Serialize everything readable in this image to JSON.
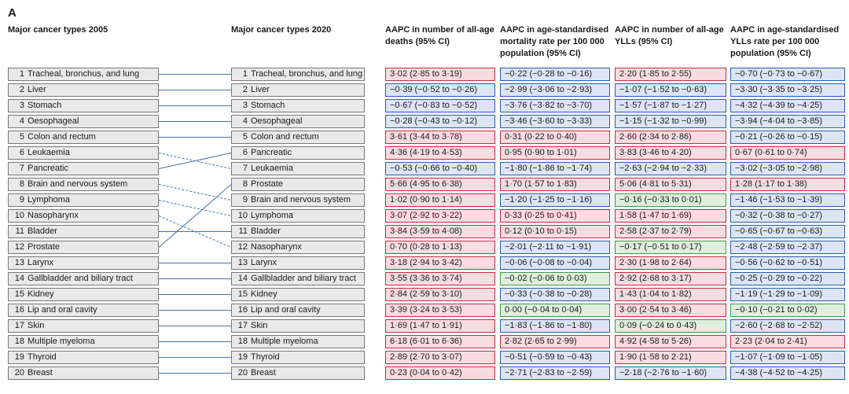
{
  "panel_label": "A",
  "headers": {
    "rank2005": "Major cancer types 2005",
    "rank2020": "Major cancer types 2020",
    "deaths": "AAPC in number of all-age deaths (95% CI)",
    "asmr": "AAPC in age-standardised mortality rate per 100 000 population (95% CI)",
    "ylls": "AAPC in number of all-age YLLs (95% CI)",
    "asylls": "AAPC in age-standardised YLLs rate per 100 000 population (95% CI)"
  },
  "colors": {
    "increase": "#c42a47",
    "decrease": "#2d5aa8",
    "not_significant": "#3f9a4a"
  },
  "rank2005": [
    {
      "rank": "1",
      "name": "Tracheal, bronchus, and lung"
    },
    {
      "rank": "2",
      "name": "Liver"
    },
    {
      "rank": "3",
      "name": "Stomach"
    },
    {
      "rank": "4",
      "name": "Oesophageal"
    },
    {
      "rank": "5",
      "name": "Colon and rectum"
    },
    {
      "rank": "6",
      "name": "Leukaemia"
    },
    {
      "rank": "7",
      "name": "Pancreatic"
    },
    {
      "rank": "8",
      "name": "Brain and nervous system"
    },
    {
      "rank": "9",
      "name": "Lymphoma"
    },
    {
      "rank": "10",
      "name": "Nasopharynx"
    },
    {
      "rank": "11",
      "name": "Bladder"
    },
    {
      "rank": "12",
      "name": "Prostate"
    },
    {
      "rank": "13",
      "name": "Larynx"
    },
    {
      "rank": "14",
      "name": "Gallbladder and biliary tract"
    },
    {
      "rank": "15",
      "name": "Kidney"
    },
    {
      "rank": "16",
      "name": "Lip and oral cavity"
    },
    {
      "rank": "17",
      "name": "Skin"
    },
    {
      "rank": "18",
      "name": "Multiple myeloma"
    },
    {
      "rank": "19",
      "name": "Thyroid"
    },
    {
      "rank": "20",
      "name": "Breast"
    }
  ],
  "rank2020": [
    {
      "rank": "1",
      "name": "Tracheal, bronchus, and lung",
      "from": 1
    },
    {
      "rank": "2",
      "name": "Liver",
      "from": 2
    },
    {
      "rank": "3",
      "name": "Stomach",
      "from": 3
    },
    {
      "rank": "4",
      "name": "Oesophageal",
      "from": 4
    },
    {
      "rank": "5",
      "name": "Colon and rectum",
      "from": 5
    },
    {
      "rank": "6",
      "name": "Pancreatic",
      "from": 7
    },
    {
      "rank": "7",
      "name": "Leukaemia",
      "from": 6
    },
    {
      "rank": "8",
      "name": "Prostate",
      "from": 12
    },
    {
      "rank": "9",
      "name": "Brain and nervous system",
      "from": 8
    },
    {
      "rank": "10",
      "name": "Lymphoma",
      "from": 9
    },
    {
      "rank": "11",
      "name": "Bladder",
      "from": 11
    },
    {
      "rank": "12",
      "name": "Nasopharynx",
      "from": 10
    },
    {
      "rank": "13",
      "name": "Larynx",
      "from": 13
    },
    {
      "rank": "14",
      "name": "Gallbladder and biliary tract",
      "from": 14
    },
    {
      "rank": "15",
      "name": "Kidney",
      "from": 15
    },
    {
      "rank": "16",
      "name": "Lip and oral cavity",
      "from": 16
    },
    {
      "rank": "17",
      "name": "Skin",
      "from": 17
    },
    {
      "rank": "18",
      "name": "Multiple myeloma",
      "from": 18
    },
    {
      "rank": "19",
      "name": "Thyroid",
      "from": 19
    },
    {
      "rank": "20",
      "name": "Breast",
      "from": 20
    }
  ],
  "aapc": {
    "deaths": [
      {
        "text": "3·02 (2·85 to 3·19)",
        "sig": "increase"
      },
      {
        "text": "−0·39 (−0·52 to −0·26)",
        "sig": "decrease"
      },
      {
        "text": "−0·67 (−0·83 to −0·52)",
        "sig": "decrease"
      },
      {
        "text": "−0·28 (−0·43 to −0·12)",
        "sig": "decrease"
      },
      {
        "text": "3·61 (3·44 to 3·78)",
        "sig": "increase"
      },
      {
        "text": "4·36 (4·19 to 4·53)",
        "sig": "increase"
      },
      {
        "text": "−0·53 (−0·66 to −0·40)",
        "sig": "decrease"
      },
      {
        "text": "5·66 (4·95 to 6·38)",
        "sig": "increase"
      },
      {
        "text": "1·02 (0·90 to 1·14)",
        "sig": "increase"
      },
      {
        "text": "3·07 (2·92 to 3·22)",
        "sig": "increase"
      },
      {
        "text": "3·84 (3·59 to 4·08)",
        "sig": "increase"
      },
      {
        "text": "0·70 (0·28 to 1·13)",
        "sig": "increase"
      },
      {
        "text": "3·18 (2·94 to 3·42)",
        "sig": "increase"
      },
      {
        "text": "3·55 (3·36 to 3·74)",
        "sig": "increase"
      },
      {
        "text": "2·84 (2·59 to 3·10)",
        "sig": "increase"
      },
      {
        "text": "3·39 (3·24 to 3·53)",
        "sig": "increase"
      },
      {
        "text": "1·69 (1·47 to 1·91)",
        "sig": "increase"
      },
      {
        "text": "6·18 (6·01 to 6·36)",
        "sig": "increase"
      },
      {
        "text": "2·89 (2·70 to 3·07)",
        "sig": "increase"
      },
      {
        "text": "0·23 (0·04 to 0·42)",
        "sig": "increase"
      }
    ],
    "asmr": [
      {
        "text": "−0·22 (−0·28 to −0·16)",
        "sig": "decrease"
      },
      {
        "text": "−2·99 (−3·06 to −2·93)",
        "sig": "decrease"
      },
      {
        "text": "−3·76 (−3·82 to −3·70)",
        "sig": "decrease"
      },
      {
        "text": "−3·46 (−3·60 to −3·33)",
        "sig": "decrease"
      },
      {
        "text": "0·31 (0·22 to 0·40)",
        "sig": "increase"
      },
      {
        "text": "0·95 (0·90 to 1·01)",
        "sig": "increase"
      },
      {
        "text": "−1·80 (−1·86 to −1·74)",
        "sig": "decrease"
      },
      {
        "text": "1·70 (1·57 to 1·83)",
        "sig": "increase"
      },
      {
        "text": "−1·20 (−1·25 to −1·16)",
        "sig": "decrease"
      },
      {
        "text": "0·33 (0·25 to 0·41)",
        "sig": "increase"
      },
      {
        "text": "0·12 (0·10 to 0·15)",
        "sig": "increase"
      },
      {
        "text": "−2·01 (−2·11 to −1·91)",
        "sig": "decrease"
      },
      {
        "text": "−0·06 (−0·08 to −0·04)",
        "sig": "decrease"
      },
      {
        "text": "−0·02 (−0·06 to 0·03)",
        "sig": "not_significant"
      },
      {
        "text": "−0·33 (−0·38 to −0·28)",
        "sig": "decrease"
      },
      {
        "text": "0·00 (−0·04 to 0·04)",
        "sig": "not_significant"
      },
      {
        "text": "−1·83 (−1·86 to −1·80)",
        "sig": "decrease"
      },
      {
        "text": "2·82 (2·65 to 2·99)",
        "sig": "increase"
      },
      {
        "text": "−0·51 (−0·59 to −0·43)",
        "sig": "decrease"
      },
      {
        "text": "−2·71 (−2·83 to −2·59)",
        "sig": "decrease"
      }
    ],
    "ylls": [
      {
        "text": "2·20 (1·85 to 2·55)",
        "sig": "increase"
      },
      {
        "text": "−1·07 (−1·52 to −0·63)",
        "sig": "decrease"
      },
      {
        "text": "−1·57 (−1·87 to −1·27)",
        "sig": "decrease"
      },
      {
        "text": "−1·15 (−1·32 to −0·99)",
        "sig": "decrease"
      },
      {
        "text": "2·60 (2·34 to 2·86)",
        "sig": "increase"
      },
      {
        "text": "3·83 (3·46 to 4·20)",
        "sig": "increase"
      },
      {
        "text": "−2·63 (−2·94 to −2·33)",
        "sig": "decrease"
      },
      {
        "text": "5·06 (4·81 to 5·31)",
        "sig": "increase"
      },
      {
        "text": "−0·16 (−0·33 to 0·01)",
        "sig": "not_significant"
      },
      {
        "text": "1·58 (1·47 to 1·69)",
        "sig": "increase"
      },
      {
        "text": "2·58 (2·37 to 2·79)",
        "sig": "increase"
      },
      {
        "text": "−0·17 (−0·51 to 0·17)",
        "sig": "not_significant"
      },
      {
        "text": "2·30 (1·98 to 2·64)",
        "sig": "increase"
      },
      {
        "text": "2·92 (2·68 to 3·17)",
        "sig": "increase"
      },
      {
        "text": "1·43 (1·04 to 1·82)",
        "sig": "increase"
      },
      {
        "text": "3·00 (2·54 to 3·46)",
        "sig": "increase"
      },
      {
        "text": "0·09 (−0·24 to 0·43)",
        "sig": "not_significant"
      },
      {
        "text": "4·92 (4·58 to 5·26)",
        "sig": "increase"
      },
      {
        "text": "1·90 (1·58 to 2·21)",
        "sig": "increase"
      },
      {
        "text": "−2·18 (−2·76 to −1·60)",
        "sig": "decrease"
      }
    ],
    "asylls": [
      {
        "text": "−0·70 (−0·73 to −0·67)",
        "sig": "decrease"
      },
      {
        "text": "−3·30 (−3·35 to −3·25)",
        "sig": "decrease"
      },
      {
        "text": "−4·32 (−4·39 to −4·25)",
        "sig": "decrease"
      },
      {
        "text": "−3·94 (−4·04 to −3·85)",
        "sig": "decrease"
      },
      {
        "text": "−0·21 (−0·26 to −0·15)",
        "sig": "decrease"
      },
      {
        "text": "0·67 (0·61 to 0·74)",
        "sig": "increase"
      },
      {
        "text": "−3·02 (−3·05 to −2·98)",
        "sig": "decrease"
      },
      {
        "text": "1·28 (1·17 to 1·38)",
        "sig": "increase"
      },
      {
        "text": "−1·46 (−1·53 to −1·39)",
        "sig": "decrease"
      },
      {
        "text": "−0·32 (−0·38 to −0·27)",
        "sig": "decrease"
      },
      {
        "text": "−0·65 (−0·67 to −0·63)",
        "sig": "decrease"
      },
      {
        "text": "−2·48 (−2·59 to −2·37)",
        "sig": "decrease"
      },
      {
        "text": "−0·56 (−0·62 to −0·51)",
        "sig": "decrease"
      },
      {
        "text": "−0·25 (−0·29 to −0·22)",
        "sig": "decrease"
      },
      {
        "text": "−1·19 (−1·29 to −1·09)",
        "sig": "decrease"
      },
      {
        "text": "−0·10 (−0·21 to 0·02)",
        "sig": "not_significant"
      },
      {
        "text": "−2·60 (−2·68 to −2·52)",
        "sig": "decrease"
      },
      {
        "text": "2·23 (2·04 to 2·41)",
        "sig": "increase"
      },
      {
        "text": "−1·07 (−1·09 to −1·05)",
        "sig": "decrease"
      },
      {
        "text": "−4·38 (−4·52 to −4·25)",
        "sig": "decrease"
      }
    ]
  }
}
